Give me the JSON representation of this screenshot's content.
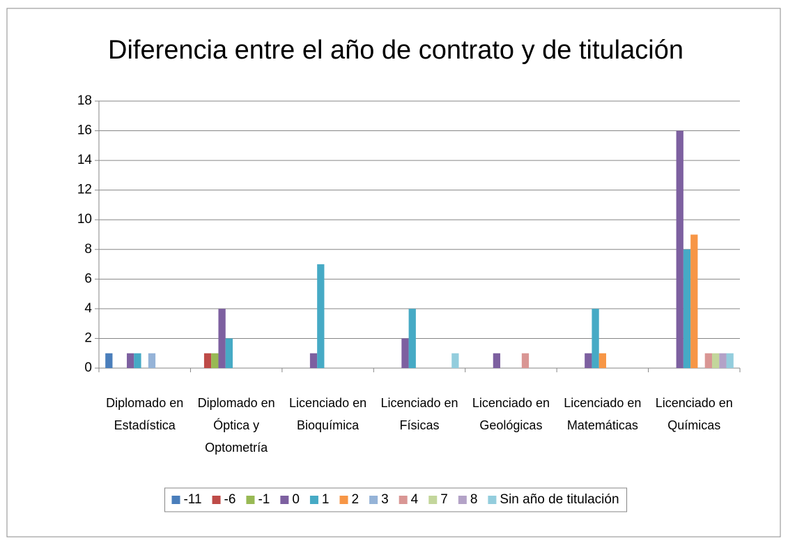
{
  "chart_data": {
    "type": "bar",
    "title": "Diferencia entre el año de contrato y de titulación",
    "categories": [
      "Diplomado en Estadística",
      "Diplomado en Óptica y Optometría",
      "Licenciado en Bioquímica",
      "Licenciado en Físicas",
      "Licenciado en Geológicas",
      "Licenciado en Matemáticas",
      "Licenciado en Químicas"
    ],
    "series": [
      {
        "name": "-11",
        "color": "#4a7ebb",
        "values": [
          1,
          null,
          null,
          null,
          null,
          null,
          null
        ]
      },
      {
        "name": "-6",
        "color": "#be4b48",
        "values": [
          null,
          1,
          null,
          null,
          null,
          null,
          null
        ]
      },
      {
        "name": "-1",
        "color": "#98b954",
        "values": [
          null,
          1,
          null,
          null,
          null,
          null,
          null
        ]
      },
      {
        "name": "0",
        "color": "#7d60a0",
        "values": [
          1,
          4,
          1,
          2,
          1,
          1,
          16
        ]
      },
      {
        "name": "1",
        "color": "#46aac5",
        "values": [
          1,
          2,
          7,
          4,
          null,
          4,
          8
        ]
      },
      {
        "name": "2",
        "color": "#f79646",
        "values": [
          null,
          null,
          null,
          null,
          null,
          1,
          9
        ]
      },
      {
        "name": "3",
        "color": "#95b3d7",
        "values": [
          1,
          null,
          null,
          null,
          null,
          null,
          null
        ]
      },
      {
        "name": "4",
        "color": "#d99694",
        "values": [
          null,
          null,
          null,
          null,
          1,
          null,
          1
        ]
      },
      {
        "name": "7",
        "color": "#c3d69b",
        "values": [
          null,
          null,
          null,
          null,
          null,
          null,
          1
        ]
      },
      {
        "name": "8",
        "color": "#b3a2c7",
        "values": [
          null,
          null,
          null,
          null,
          null,
          null,
          1
        ]
      },
      {
        "name": "Sin año de titulación",
        "color": "#93cddd",
        "values": [
          null,
          null,
          null,
          1,
          null,
          null,
          1
        ]
      }
    ],
    "ylim": [
      0,
      18
    ],
    "yticks": [
      0,
      2,
      4,
      6,
      8,
      10,
      12,
      14,
      16,
      18
    ],
    "grid": true,
    "legend": "bottom"
  }
}
